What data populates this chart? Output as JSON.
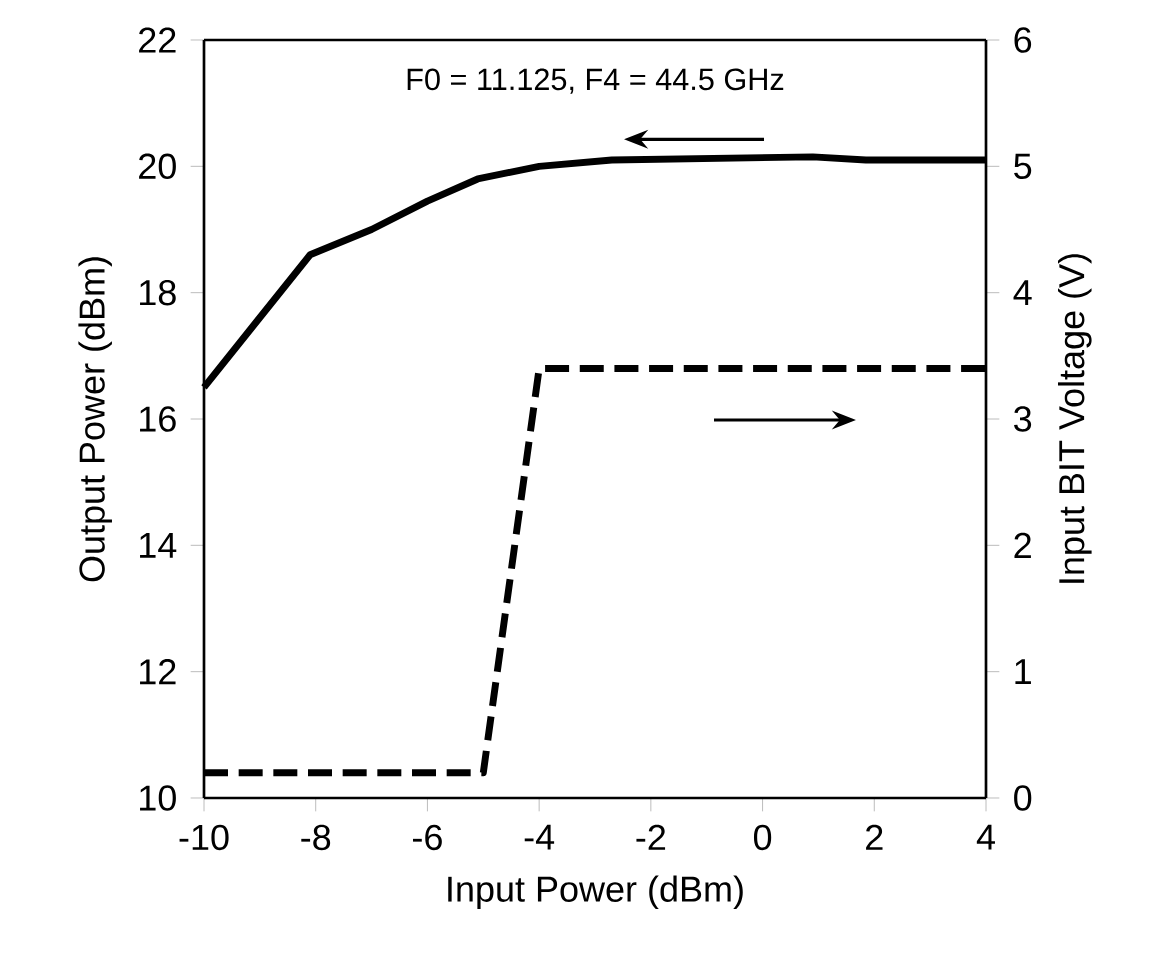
{
  "chart_data": {
    "type": "line",
    "xlabel": "Input Power (dBm)",
    "ylabel": "Output Power (dBm)",
    "y2label": "Input BIT Voltage (V)",
    "annotations": [
      "F0 = 11.125, F4 = 44.5 GHz"
    ],
    "xlim": [
      -10,
      4
    ],
    "xticks": [
      -10,
      -8,
      -6,
      -4,
      -2,
      0,
      2,
      4
    ],
    "ylim": [
      10,
      22
    ],
    "yticks": [
      10,
      12,
      14,
      16,
      18,
      20,
      22
    ],
    "y2lim": [
      0,
      6
    ],
    "y2ticks": [
      0,
      1,
      2,
      3,
      4,
      5,
      6
    ],
    "marker": "none",
    "series": [
      {
        "color": "#000000",
        "line_style": "solid",
        "x": [
          -10,
          -8.1,
          -7,
          -6,
          -5.1,
          -4,
          -2.7,
          0.9,
          1.85,
          4
        ],
        "values": [
          16.5,
          18.6,
          19.0,
          19.45,
          19.8,
          20.0,
          20.1,
          20.15,
          20.1,
          20.1
        ]
      },
      {
        "color": "#000000",
        "line_style": "dashed",
        "axis": "y2",
        "x": [
          -10,
          -5,
          -4,
          4
        ],
        "values": [
          0.2,
          0.2,
          3.4,
          3.4
        ]
      }
    ]
  }
}
